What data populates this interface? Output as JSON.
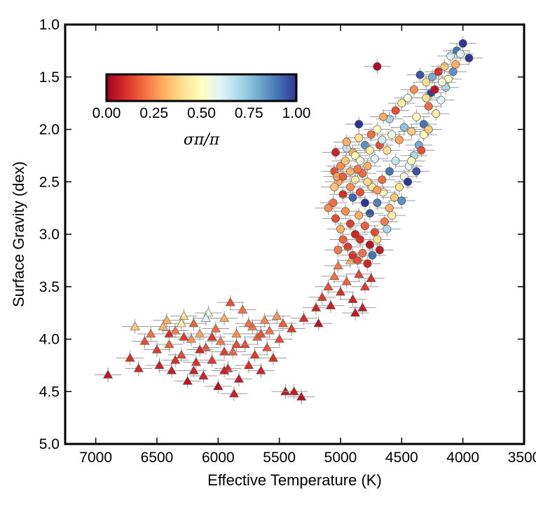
{
  "chart_data": {
    "type": "scatter",
    "title": "",
    "xlabel": "Effective Temperature (K)",
    "ylabel": "Surface Gravity (dex)",
    "xlim": [
      7250,
      3500
    ],
    "ylim": [
      5.0,
      1.0
    ],
    "x_ticks": [
      "7000",
      "6500",
      "6000",
      "5500",
      "5000",
      "4500",
      "4000",
      "3500"
    ],
    "y_ticks": [
      "1.0",
      "1.5",
      "2.0",
      "2.5",
      "3.0",
      "3.5",
      "4.0",
      "4.5",
      "5.0"
    ],
    "colorbar": {
      "label": "σπ/π",
      "ticks": [
        "0.00",
        "0.25",
        "0.50",
        "0.75",
        "1.00"
      ],
      "range": [
        0,
        1
      ],
      "colormap": "RdYlBu",
      "position": "upper-left inset",
      "colors": [
        "#a50026",
        "#d73027",
        "#f46d43",
        "#fdae61",
        "#fee090",
        "#ffffbf",
        "#e0f3f8",
        "#abd9e9",
        "#74add1",
        "#4575b4",
        "#313695"
      ]
    },
    "series": [
      {
        "marker": "triangle",
        "description_group": "dwarfs",
        "points": [
          [
            6900,
            4.34,
            0.05
          ],
          [
            6650,
            4.28,
            0.08
          ],
          [
            6720,
            4.18,
            0.1
          ],
          [
            6600,
            4.02,
            0.15
          ],
          [
            6680,
            3.88,
            0.35
          ],
          [
            6550,
            3.95,
            0.2
          ],
          [
            6500,
            4.1,
            0.12
          ],
          [
            6480,
            4.25,
            0.07
          ],
          [
            6420,
            3.82,
            0.3
          ],
          [
            6400,
            4.05,
            0.18
          ],
          [
            6380,
            4.3,
            0.06
          ],
          [
            6350,
            3.92,
            0.22
          ],
          [
            6300,
            4.15,
            0.14
          ],
          [
            6280,
            3.78,
            0.4
          ],
          [
            6250,
            4.4,
            0.05
          ],
          [
            6220,
            4.0,
            0.25
          ],
          [
            6200,
            3.85,
            0.18
          ],
          [
            6180,
            4.22,
            0.1
          ],
          [
            6150,
            3.95,
            0.28
          ],
          [
            6120,
            4.35,
            0.08
          ],
          [
            6100,
            4.08,
            0.16
          ],
          [
            6080,
            3.75,
            0.55
          ],
          [
            6050,
            4.2,
            0.12
          ],
          [
            6020,
            3.9,
            0.2
          ],
          [
            6000,
            4.45,
            0.04
          ],
          [
            5980,
            4.02,
            0.22
          ],
          [
            5950,
            3.8,
            0.3
          ],
          [
            5920,
            4.28,
            0.09
          ],
          [
            5900,
            3.65,
            0.15
          ],
          [
            5880,
            4.12,
            0.18
          ],
          [
            5850,
            3.95,
            0.25
          ],
          [
            5830,
            4.38,
            0.06
          ],
          [
            5800,
            3.72,
            0.2
          ],
          [
            5780,
            4.05,
            0.14
          ],
          [
            5750,
            4.25,
            0.1
          ],
          [
            5720,
            3.88,
            0.22
          ],
          [
            5700,
            4.15,
            0.12
          ],
          [
            5680,
            3.98,
            0.18
          ],
          [
            5650,
            4.3,
            0.08
          ],
          [
            5620,
            3.82,
            0.24
          ],
          [
            5600,
            4.08,
            0.16
          ],
          [
            5580,
            3.92,
            0.2
          ],
          [
            5550,
            4.18,
            0.1
          ],
          [
            5520,
            3.78,
            0.26
          ],
          [
            5500,
            4.0,
            0.14
          ],
          [
            5470,
            3.85,
            0.18
          ],
          [
            5450,
            4.5,
            0.05
          ],
          [
            5400,
            3.9,
            0.12
          ],
          [
            5380,
            4.5,
            0.06
          ],
          [
            5320,
            4.55,
            0.04
          ],
          [
            5870,
            4.52,
            0.07
          ],
          [
            6400,
            3.95,
            0.1
          ],
          [
            6280,
            3.98,
            0.12
          ],
          [
            6150,
            4.1,
            0.09
          ],
          [
            6050,
            3.98,
            0.11
          ],
          [
            5950,
            4.12,
            0.13
          ],
          [
            5850,
            4.05,
            0.15
          ],
          [
            6350,
            4.2,
            0.1
          ],
          [
            6200,
            4.3,
            0.08
          ],
          [
            5950,
            4.3,
            0.07
          ],
          [
            5750,
            3.85,
            0.2
          ],
          [
            5650,
            3.95,
            0.16
          ],
          [
            6450,
            3.88,
            0.32
          ],
          [
            6300,
            3.85,
            0.45
          ],
          [
            6100,
            3.8,
            0.6
          ],
          [
            5300,
            3.8,
            0.1
          ],
          [
            5200,
            3.7,
            0.08
          ],
          [
            5150,
            3.6,
            0.12
          ],
          [
            5100,
            3.5,
            0.15
          ],
          [
            5050,
            3.4,
            0.2
          ],
          [
            5000,
            3.55,
            0.1
          ],
          [
            4950,
            3.45,
            0.18
          ],
          [
            4900,
            3.62,
            0.08
          ],
          [
            4850,
            3.38,
            0.14
          ],
          [
            4800,
            3.5,
            0.12
          ],
          [
            4750,
            3.42,
            0.1
          ],
          [
            5080,
            3.68,
            0.06
          ],
          [
            5180,
            3.85,
            0.04
          ],
          [
            4880,
            3.75,
            0.05
          ],
          [
            5020,
            3.3,
            0.22
          ],
          [
            4920,
            3.25,
            0.3
          ],
          [
            4820,
            3.7,
            0.06
          ]
        ]
      },
      {
        "marker": "circle",
        "description_group": "giants",
        "points": [
          [
            4700,
            1.4,
            0.02
          ],
          [
            4000,
            1.18,
            1.0
          ],
          [
            4050,
            1.25,
            0.9
          ],
          [
            3950,
            1.32,
            1.0
          ],
          [
            4100,
            1.3,
            0.6
          ],
          [
            4150,
            1.4,
            0.35
          ],
          [
            4200,
            1.45,
            0.1
          ],
          [
            4250,
            1.5,
            0.8
          ],
          [
            4300,
            1.55,
            0.4
          ],
          [
            4350,
            1.48,
            0.95
          ],
          [
            4400,
            1.62,
            0.25
          ],
          [
            4450,
            1.7,
            0.55
          ],
          [
            4500,
            1.75,
            0.45
          ],
          [
            4550,
            1.82,
            0.15
          ],
          [
            4600,
            1.9,
            0.7
          ],
          [
            4650,
            1.88,
            0.3
          ],
          [
            4700,
            2.0,
            0.5
          ],
          [
            4750,
            2.05,
            0.2
          ],
          [
            4800,
            2.15,
            0.85
          ],
          [
            4850,
            2.08,
            0.4
          ],
          [
            4900,
            2.22,
            0.3
          ],
          [
            4950,
            2.18,
            0.65
          ],
          [
            5000,
            2.35,
            0.25
          ],
          [
            5050,
            2.4,
            0.15
          ],
          [
            4850,
            1.95,
            1.0
          ],
          [
            4950,
            2.12,
            0.3
          ],
          [
            4180,
            1.72,
            0.6
          ],
          [
            4220,
            1.85,
            0.45
          ],
          [
            4280,
            1.78,
            0.2
          ],
          [
            4320,
            1.95,
            0.9
          ],
          [
            4380,
            1.88,
            0.5
          ],
          [
            4420,
            2.02,
            0.35
          ],
          [
            4480,
            1.98,
            0.75
          ],
          [
            4520,
            2.1,
            0.28
          ],
          [
            4580,
            2.05,
            0.55
          ],
          [
            4620,
            2.2,
            0.4
          ],
          [
            4680,
            2.15,
            0.15
          ],
          [
            4720,
            2.28,
            0.6
          ],
          [
            4780,
            2.35,
            0.3
          ],
          [
            4820,
            2.42,
            0.2
          ],
          [
            4880,
            2.48,
            0.45
          ],
          [
            4920,
            2.55,
            0.25
          ],
          [
            4980,
            2.62,
            0.1
          ],
          [
            5020,
            2.5,
            0.3
          ],
          [
            5060,
            2.7,
            0.2
          ],
          [
            5040,
            2.85,
            0.15
          ],
          [
            5000,
            2.95,
            0.3
          ],
          [
            4960,
            2.78,
            0.25
          ],
          [
            4920,
            2.9,
            0.12
          ],
          [
            4880,
            3.0,
            0.08
          ],
          [
            4840,
            3.05,
            0.1
          ],
          [
            4800,
            2.92,
            0.18
          ],
          [
            4760,
            3.1,
            0.05
          ],
          [
            4720,
            2.98,
            0.14
          ],
          [
            4680,
            3.15,
            0.06
          ],
          [
            4640,
            2.88,
            0.22
          ],
          [
            4600,
            2.75,
            0.3
          ],
          [
            4560,
            2.65,
            0.35
          ],
          [
            4520,
            2.55,
            0.4
          ],
          [
            4480,
            2.45,
            0.55
          ],
          [
            4440,
            2.35,
            0.6
          ],
          [
            4400,
            2.25,
            0.7
          ],
          [
            4360,
            2.15,
            0.8
          ],
          [
            4320,
            2.05,
            0.5
          ],
          [
            4280,
            2.0,
            0.35
          ],
          [
            4900,
            3.2,
            0.1
          ],
          [
            4860,
            3.25,
            0.15
          ],
          [
            4820,
            3.18,
            0.2
          ],
          [
            4780,
            3.28,
            0.08
          ],
          [
            4940,
            3.12,
            0.12
          ],
          [
            4980,
            3.05,
            0.18
          ],
          [
            5020,
            3.15,
            0.22
          ],
          [
            4760,
            2.8,
            0.95
          ],
          [
            4700,
            2.7,
            0.88
          ],
          [
            4650,
            2.6,
            0.5
          ],
          [
            4800,
            2.7,
            1.0
          ],
          [
            4900,
            2.65,
            0.92
          ],
          [
            4850,
            2.82,
            0.3
          ],
          [
            4740,
            2.55,
            0.42
          ],
          [
            4600,
            2.4,
            0.9
          ],
          [
            4550,
            2.3,
            0.65
          ],
          [
            4660,
            2.48,
            0.2
          ],
          [
            4700,
            2.58,
            0.28
          ],
          [
            4780,
            2.5,
            0.38
          ],
          [
            4840,
            2.6,
            0.15
          ],
          [
            4620,
            2.95,
            0.7
          ],
          [
            4580,
            2.82,
            0.45
          ],
          [
            4700,
            3.05,
            0.4
          ],
          [
            4740,
            3.2,
            0.9
          ],
          [
            5050,
            2.55,
            0.35
          ],
          [
            5100,
            2.75,
            0.25
          ],
          [
            4450,
            2.5,
            1.0
          ],
          [
            4500,
            2.68,
            0.85
          ],
          [
            4380,
            2.4,
            0.95
          ],
          [
            4420,
            2.3,
            0.5
          ],
          [
            4340,
            2.2,
            0.15
          ],
          [
            4260,
            1.65,
            0.98
          ],
          [
            4300,
            1.7,
            0.4
          ],
          [
            4140,
            1.6,
            0.7
          ],
          [
            4120,
            1.52,
            0.5
          ],
          [
            4080,
            1.45,
            0.85
          ],
          [
            4060,
            1.38,
            0.3
          ],
          [
            4020,
            1.28,
            0.6
          ],
          [
            4230,
            1.62,
            0.05
          ],
          [
            4170,
            1.55,
            0.55
          ],
          [
            4880,
            2.25,
            0.48
          ],
          [
            4960,
            2.3,
            0.35
          ],
          [
            4840,
            2.3,
            0.55
          ],
          [
            4760,
            2.2,
            0.45
          ],
          [
            4660,
            2.1,
            0.62
          ],
          [
            5040,
            2.22,
            0.08
          ],
          [
            5030,
            2.45,
            0.28
          ],
          [
            4980,
            2.45,
            0.18
          ],
          [
            4920,
            2.4,
            0.32
          ],
          [
            4860,
            2.38,
            0.22
          ]
        ]
      }
    ]
  }
}
